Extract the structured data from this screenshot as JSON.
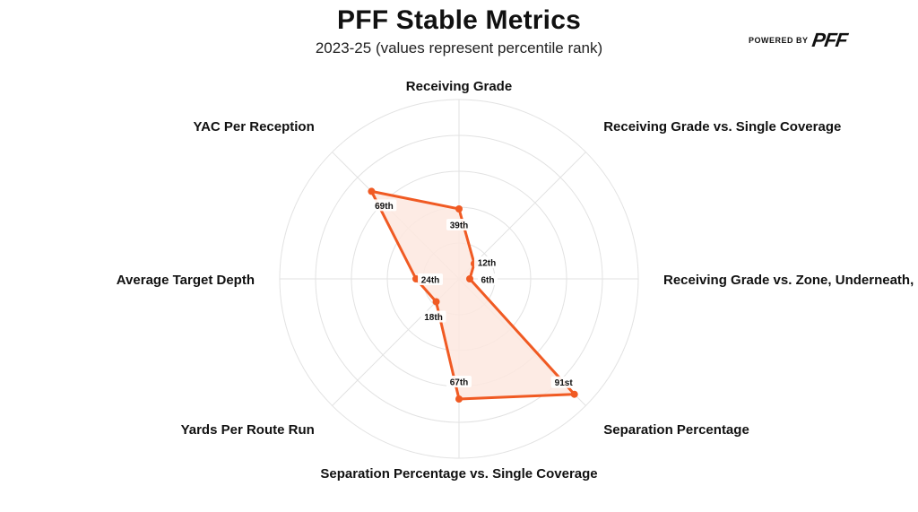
{
  "header": {
    "title": "PFF Stable Metrics",
    "subtitle": "2023-25 (values represent percentile rank)",
    "powered_by": "POWERED BY",
    "brand": "PFF"
  },
  "colors": {
    "accent": "#f05a23",
    "fill": "#fde7df",
    "grid": "#e2e2e2"
  },
  "chart_data": {
    "type": "radar",
    "title": "PFF Stable Metrics",
    "subtitle": "2023-25 (values represent percentile rank)",
    "rlim": [
      0,
      100
    ],
    "grid": true,
    "axes": [
      "Receiving Grade",
      "Receiving Grade vs. Single Coverage",
      "Receiving Grade vs. Zone, Underneath,",
      "Separation Percentage",
      "Separation Percentage vs. Single Coverage",
      "Yards Per Route Run",
      "Average Target Depth",
      "YAC Per Reception"
    ],
    "values": [
      39,
      12,
      6,
      91,
      67,
      18,
      24,
      69
    ],
    "value_labels": [
      "39th",
      "12th",
      "6th",
      "91st",
      "67th",
      "18th",
      "24th",
      "69th"
    ]
  }
}
